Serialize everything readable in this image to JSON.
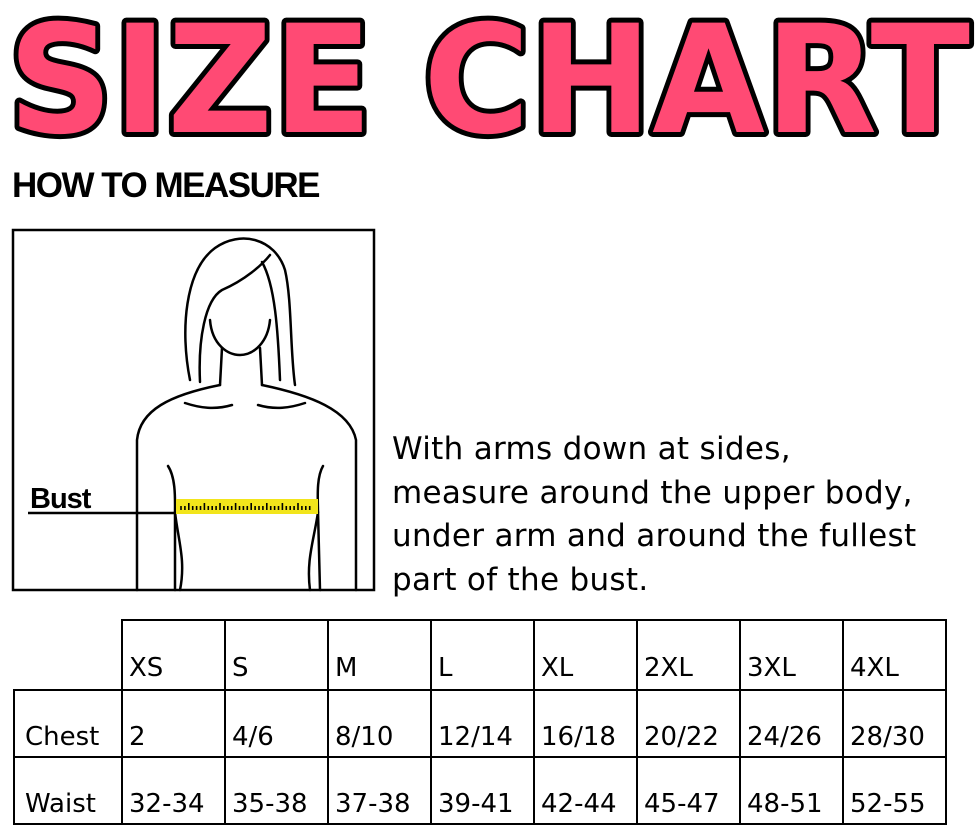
{
  "title": "SIZE CHART",
  "colors": {
    "title_fill": "#FF4A74",
    "title_outline": "#000000",
    "tape": "#F2E51B"
  },
  "how_to_measure": {
    "heading": "HOW TO MEASURE",
    "figure_label": "Bust",
    "instructions": [
      "With arms down at sides,",
      "measure around the upper body,",
      "under arm and around the fullest",
      "part of the bust."
    ]
  },
  "size_table": {
    "sizes": [
      "XS",
      "S",
      "M",
      "L",
      "XL",
      "2XL",
      "3XL",
      "4XL"
    ],
    "rows": [
      {
        "label": "Chest",
        "values": [
          "2",
          "4/6",
          "8/10",
          "12/14",
          "16/18",
          "20/22",
          "24/26",
          "28/30"
        ]
      },
      {
        "label": "Waist",
        "values": [
          "32-34",
          "35-38",
          "37-38",
          "39-41",
          "42-44",
          "45-47",
          "48-51",
          "52-55"
        ]
      }
    ]
  }
}
